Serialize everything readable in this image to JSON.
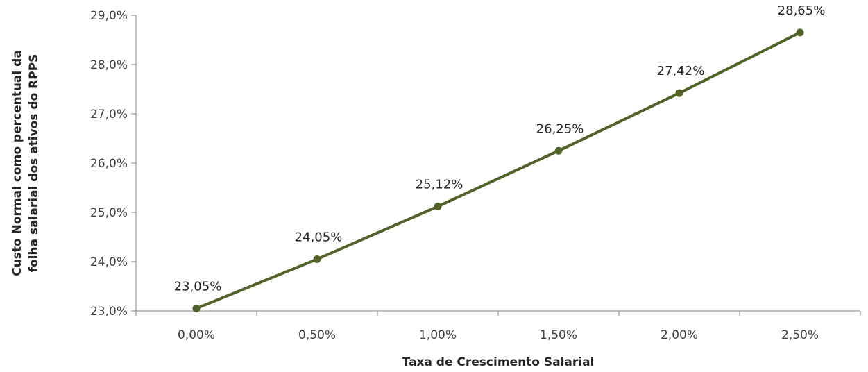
{
  "chart_data": {
    "type": "line",
    "title": "",
    "xlabel": "Taxa  de Crescimento Salarial",
    "ylabel_lines": [
      "Custo Normal como percentual da",
      "folha salarial dos ativos do RPPS"
    ],
    "categories": [
      "0,00%",
      "0,50%",
      "1,00%",
      "1,50%",
      "2,00%",
      "2,50%"
    ],
    "series": [
      {
        "values": [
          23.05,
          24.05,
          25.12,
          26.25,
          27.42,
          28.65
        ],
        "labels": [
          "23,05%",
          "24,05%",
          "25,12%",
          "26,25%",
          "27,42%",
          "28,65%"
        ],
        "color": "#4f6228"
      }
    ],
    "yticks": [
      23.0,
      24.0,
      25.0,
      26.0,
      27.0,
      28.0,
      29.0
    ],
    "ytick_labels": [
      "23,0%",
      "24,0%",
      "25,0%",
      "26,0%",
      "27,0%",
      "28,0%",
      "29,0%"
    ],
    "ylim": [
      23.0,
      29.0
    ],
    "grid": false,
    "legend": "none"
  }
}
